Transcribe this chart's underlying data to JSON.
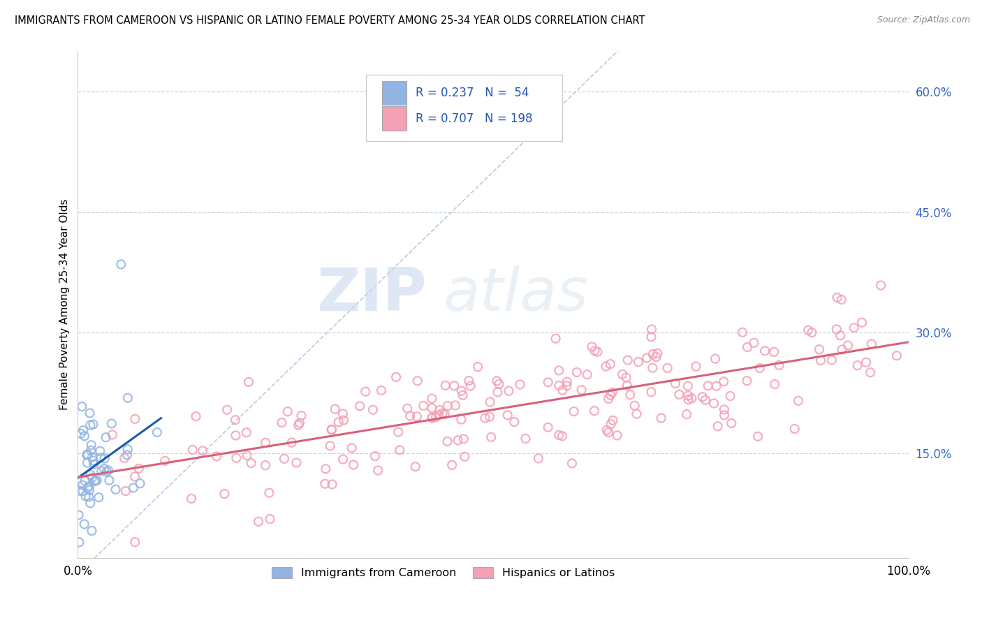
{
  "title": "IMMIGRANTS FROM CAMEROON VS HISPANIC OR LATINO FEMALE POVERTY AMONG 25-34 YEAR OLDS CORRELATION CHART",
  "source": "Source: ZipAtlas.com",
  "ylabel": "Female Poverty Among 25-34 Year Olds",
  "watermark_zip": "ZIP",
  "watermark_atlas": "atlas",
  "legend1_label": "Immigrants from Cameroon",
  "legend2_label": "Hispanics or Latinos",
  "R1": 0.237,
  "N1": 54,
  "R2": 0.707,
  "N2": 198,
  "color_blue": "#92b4e3",
  "color_pink": "#f4a0b5",
  "color_blue_line": "#1a5ca8",
  "color_pink_line": "#d9607a",
  "xlim": [
    0.0,
    1.0
  ],
  "ylim": [
    0.02,
    0.65
  ],
  "yticks": [
    0.15,
    0.3,
    0.45,
    0.6
  ],
  "ytick_labels": [
    "15.0%",
    "30.0%",
    "45.0%",
    "60.0%"
  ],
  "diag_color": "#b0c4de"
}
